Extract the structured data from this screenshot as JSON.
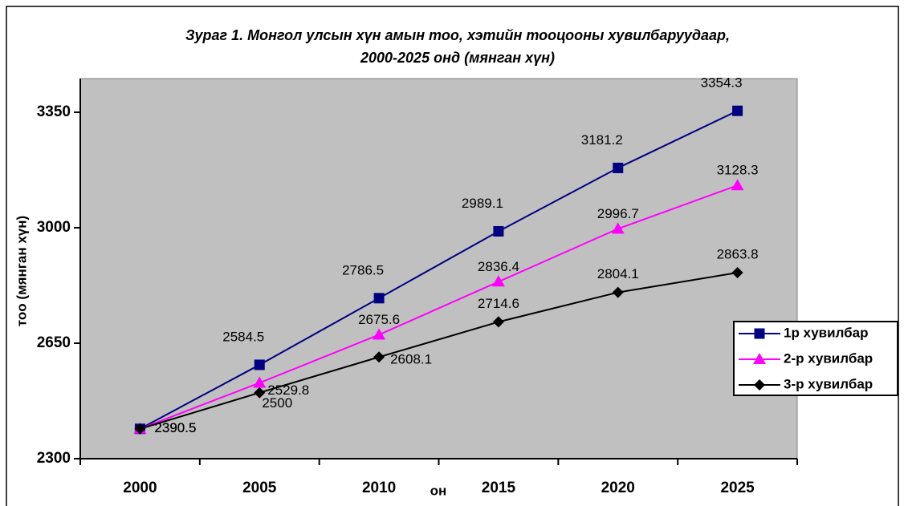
{
  "chart_data": {
    "type": "line",
    "title": [
      "Зураг 1. Монгол улсын хүн амын тоо, хэтийн тооцооны хувилбаруудаар,",
      "2000-2025 онд (мянган хүн)"
    ],
    "xlabel": "он",
    "ylabel": "тоо (мянган хүн)",
    "categories": [
      "2000",
      "2005",
      "2010",
      "2015",
      "2020",
      "2025"
    ],
    "series": [
      {
        "name": "1р хувилбар",
        "color": "#000080",
        "marker": "square",
        "values": [
          2390.5,
          2584.5,
          2786.5,
          2989.1,
          3181.2,
          3354.3
        ]
      },
      {
        "name": "2-р хувилбар",
        "color": "#ff00ff",
        "marker": "triangle",
        "values": [
          2390.5,
          2529.8,
          2675.6,
          2836.4,
          2996.7,
          3128.3
        ]
      },
      {
        "name": "3-р хувилбар",
        "color": "#000000",
        "marker": "diamond",
        "values": [
          2390.5,
          2500,
          2608.1,
          2714.6,
          2804.1,
          2863.8
        ]
      }
    ],
    "ylim": [
      2300,
      3452
    ],
    "yticks": [
      2300,
      2650,
      3000,
      3350
    ],
    "legend": "right",
    "plot_background": "#c0c0c0"
  }
}
